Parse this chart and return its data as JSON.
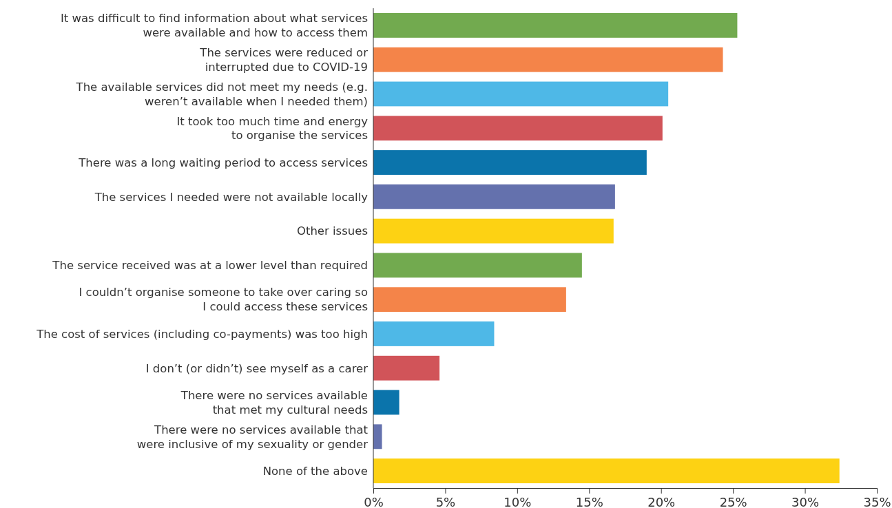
{
  "chart_data": {
    "type": "bar",
    "orientation": "horizontal",
    "categories": [
      "It was difficult to find information about what services\nwere available and how to access them",
      "The services were reduced or\ninterrupted due to COVID-19",
      "The available services did not meet my needs (e.g.\nweren’t available when I needed them)",
      "It took too much time and energy\nto organise the services",
      "There was a long waiting period to access services",
      "The services I needed were not available locally",
      "Other issues",
      "The service received was at a lower level than required",
      "I couldn’t organise someone to take over caring so\nI could access these services",
      "The cost of services (including co-payments) was too high",
      "I don’t (or didn’t) see myself as a carer",
      "There were no services available\nthat met my cultural needs",
      "There were no services available that\nwere inclusive of my sexuality or gender",
      "None of the above"
    ],
    "values": [
      25.3,
      24.3,
      20.5,
      20.1,
      19.0,
      16.8,
      16.7,
      14.5,
      13.4,
      8.4,
      4.6,
      1.8,
      0.6,
      32.4
    ],
    "colors": [
      "#72aa4f",
      "#f48449",
      "#4eb8e7",
      "#d15459",
      "#0b74ab",
      "#6471ad",
      "#fdd213",
      "#72aa4f",
      "#f48449",
      "#4eb8e7",
      "#d15459",
      "#0b74ab",
      "#6471ad",
      "#fdd213"
    ],
    "xlim": [
      0,
      35
    ],
    "xticks": [
      {
        "value": 0,
        "label": "0%"
      },
      {
        "value": 5,
        "label": "5%"
      },
      {
        "value": 10,
        "label": "10%"
      },
      {
        "value": 15,
        "label": "15%"
      },
      {
        "value": 20,
        "label": "20%"
      },
      {
        "value": 25,
        "label": "25%"
      },
      {
        "value": 30,
        "label": "30%"
      },
      {
        "value": 35,
        "label": "35%"
      }
    ],
    "grid": false
  }
}
